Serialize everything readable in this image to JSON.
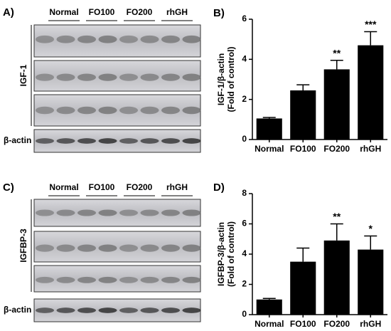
{
  "blots": [
    {
      "panel": "A)",
      "groups": [
        "Normal",
        "FO100",
        "FO200",
        "rhGH"
      ],
      "target": "IGF-1",
      "control": "β-actin"
    },
    {
      "panel": "C)",
      "groups": [
        "Normal",
        "FO100",
        "FO200",
        "rhGH"
      ],
      "target": "IGFBP-3",
      "control": "β-actin"
    }
  ],
  "chart_data": [
    {
      "type": "bar",
      "panel": "B)",
      "ylabel": [
        "IGF-1/β-actin",
        "(Fold of control)"
      ],
      "categories": [
        "Normal",
        "FO100",
        "FO200",
        "rhGH"
      ],
      "values": [
        1.05,
        2.45,
        3.5,
        4.7
      ],
      "errors": [
        0.05,
        0.28,
        0.45,
        0.68
      ],
      "significance": [
        null,
        null,
        "**",
        "***"
      ],
      "color": "#000000",
      "ylim": [
        0,
        6
      ],
      "yticks": [
        0,
        2,
        4,
        6
      ]
    },
    {
      "type": "bar",
      "panel": "D)",
      "ylabel": [
        "IGFBP-3/β-actin",
        "(Fold of control)"
      ],
      "categories": [
        "Normal",
        "FO100",
        "FO200",
        "rhGH"
      ],
      "values": [
        1.0,
        3.5,
        4.9,
        4.3
      ],
      "errors": [
        0.07,
        0.9,
        1.1,
        0.9
      ],
      "significance": [
        null,
        null,
        "**",
        "*"
      ],
      "color": "#000000",
      "ylim": [
        0,
        8
      ],
      "yticks": [
        0,
        2,
        4,
        6,
        8
      ]
    }
  ]
}
